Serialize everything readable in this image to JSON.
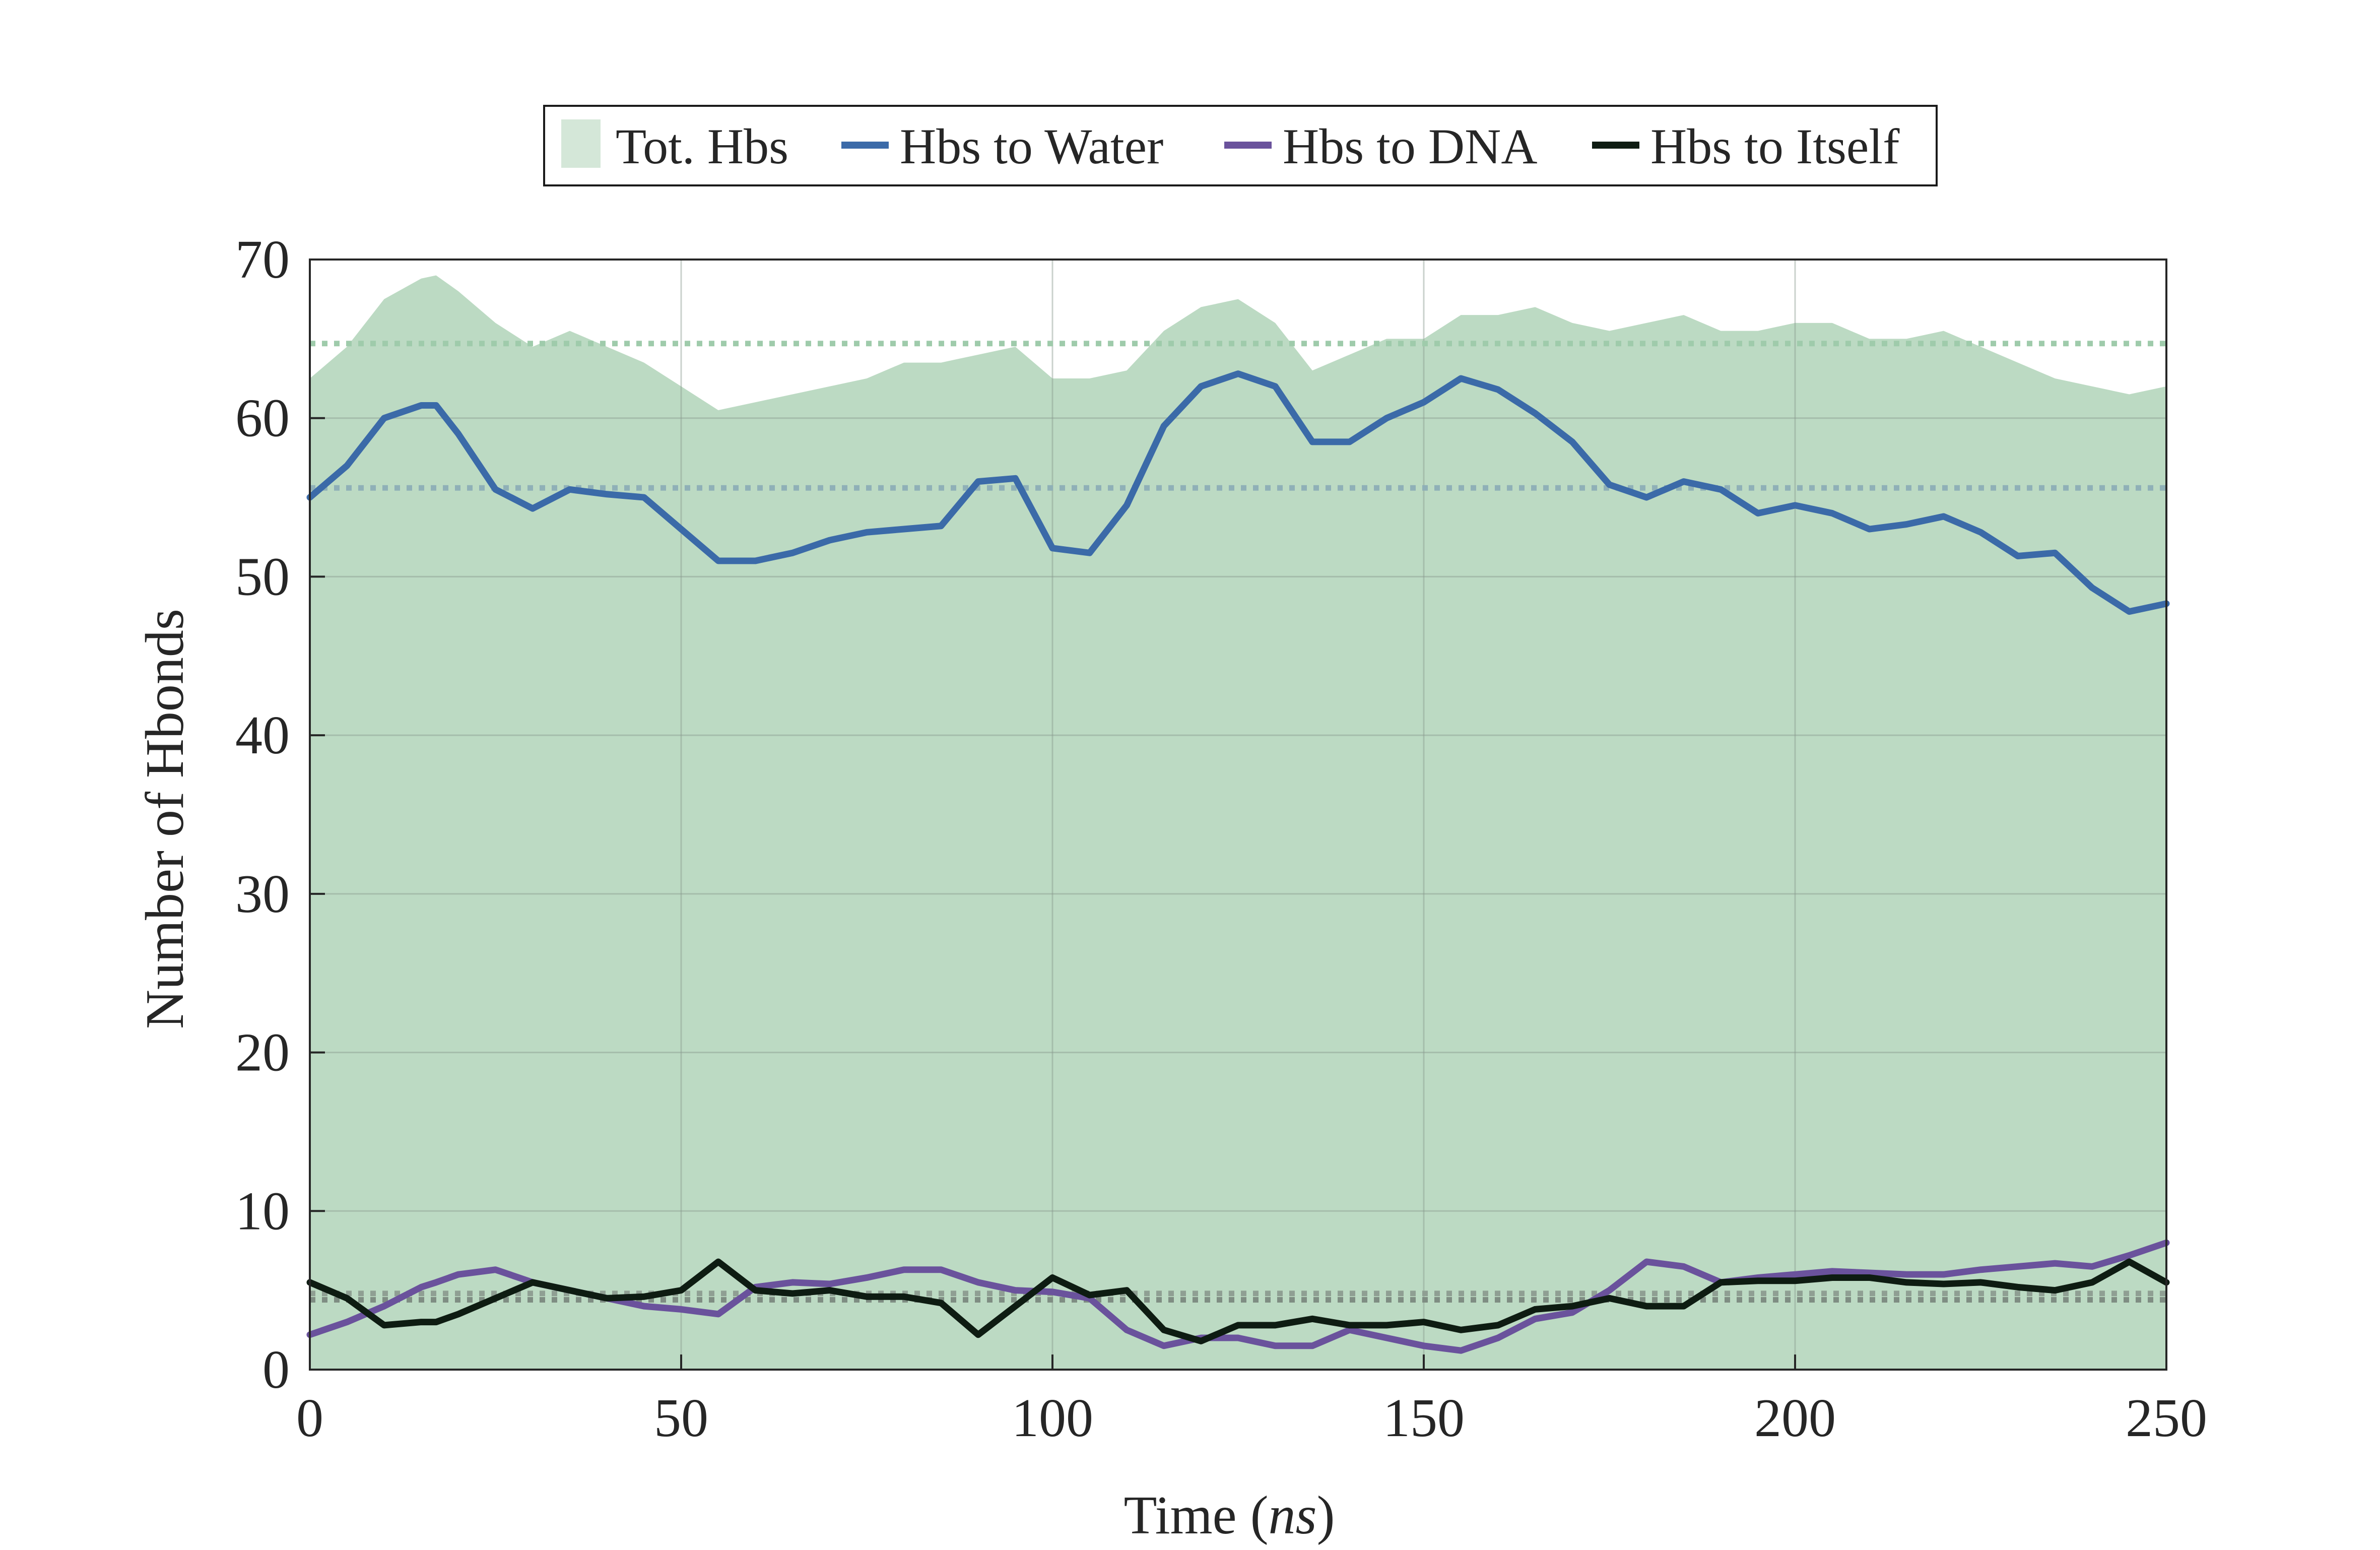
{
  "chart_data": {
    "type": "line",
    "title": "",
    "xlabel_main": "Time (",
    "xlabel_unit": "ns",
    "xlabel_close": ")",
    "ylabel": "Number of Hbonds",
    "xlim": [
      0,
      250
    ],
    "ylim": [
      0,
      70
    ],
    "xticks": [
      0,
      50,
      100,
      150,
      200,
      250
    ],
    "yticks": [
      0,
      10,
      20,
      30,
      40,
      50,
      60,
      70
    ],
    "grid": true,
    "legend_position": "top-center",
    "x": [
      0,
      5,
      10,
      15,
      17,
      20,
      25,
      30,
      35,
      40,
      45,
      50,
      55,
      60,
      65,
      70,
      75,
      80,
      85,
      90,
      95,
      100,
      105,
      110,
      115,
      120,
      125,
      130,
      135,
      140,
      145,
      150,
      155,
      160,
      165,
      170,
      175,
      180,
      185,
      190,
      195,
      200,
      205,
      210,
      215,
      220,
      225,
      230,
      235,
      240,
      245,
      250
    ],
    "series": [
      {
        "name": "Tot. Hbs",
        "kind": "area",
        "color": "#bcdac3",
        "values": [
          62.5,
          64.5,
          67.5,
          68.8,
          69.0,
          68.0,
          66.0,
          64.5,
          65.5,
          64.5,
          63.5,
          62.0,
          60.5,
          61.0,
          61.5,
          62.0,
          62.5,
          63.5,
          63.5,
          64.0,
          64.5,
          62.5,
          62.5,
          63.0,
          65.5,
          67.0,
          67.5,
          66.0,
          63.0,
          64.0,
          65.0,
          65.0,
          66.5,
          66.5,
          67.0,
          66.0,
          65.5,
          66.0,
          66.5,
          65.5,
          65.5,
          66.0,
          66.0,
          65.0,
          65.0,
          65.5,
          64.5,
          63.5,
          62.5,
          62.0,
          61.5,
          62.0
        ]
      },
      {
        "name": "Hbs to Water",
        "kind": "line",
        "color": "#3b6aa8",
        "values": [
          55.0,
          57.0,
          60.0,
          60.8,
          60.8,
          59.0,
          55.5,
          54.3,
          55.5,
          55.2,
          55.0,
          53.0,
          51.0,
          51.0,
          51.5,
          52.3,
          52.8,
          53.0,
          53.2,
          56.0,
          56.2,
          51.8,
          51.5,
          54.5,
          59.5,
          62.0,
          62.8,
          62.0,
          58.5,
          58.5,
          60.0,
          61.0,
          62.5,
          61.8,
          60.3,
          58.5,
          55.8,
          55.0,
          56.0,
          55.5,
          54.0,
          54.5,
          54.0,
          53.0,
          53.3,
          53.8,
          52.8,
          51.3,
          51.5,
          49.3,
          47.8,
          48.3
        ]
      },
      {
        "name": "Hbs to DNA",
        "kind": "line",
        "color": "#6a529c",
        "values": [
          2.2,
          3.0,
          4.0,
          5.2,
          5.5,
          6.0,
          6.3,
          5.5,
          5.0,
          4.5,
          4.0,
          3.8,
          3.5,
          5.2,
          5.5,
          5.4,
          5.8,
          6.3,
          6.3,
          5.5,
          5.0,
          4.9,
          4.5,
          2.5,
          1.5,
          2.0,
          2.0,
          1.5,
          1.5,
          2.5,
          2.0,
          1.5,
          1.2,
          2.0,
          3.2,
          3.6,
          5.0,
          6.8,
          6.5,
          5.5,
          5.8,
          6.0,
          6.2,
          6.1,
          6.0,
          6.0,
          6.3,
          6.5,
          6.7,
          6.5,
          7.2,
          8.0
        ]
      },
      {
        "name": "Hbs to Itself",
        "kind": "line",
        "color": "#0e1c12",
        "values": [
          5.5,
          4.5,
          2.8,
          3.0,
          3.0,
          3.5,
          4.5,
          5.5,
          5.0,
          4.5,
          4.6,
          5.0,
          6.8,
          5.0,
          4.8,
          5.0,
          4.6,
          4.6,
          4.2,
          2.2,
          4.0,
          5.8,
          4.7,
          5.0,
          2.5,
          1.8,
          2.8,
          2.8,
          3.2,
          2.8,
          2.8,
          3.0,
          2.5,
          2.8,
          3.8,
          4.0,
          4.5,
          4.0,
          4.0,
          5.5,
          5.6,
          5.6,
          5.8,
          5.8,
          5.5,
          5.4,
          5.5,
          5.2,
          5.0,
          5.5,
          6.8,
          5.5
        ]
      }
    ],
    "mean_lines": [
      {
        "of": "Tot. Hbs",
        "value": 64.7,
        "color": "#9fcbab"
      },
      {
        "of": "Hbs to Water",
        "value": 55.6,
        "color": "#8fb0b7"
      },
      {
        "of": "Hbs to DNA",
        "value": 4.8,
        "color": "#8f9f93"
      },
      {
        "of": "Hbs to Itself",
        "value": 4.4,
        "color": "#7f8d83"
      }
    ],
    "legend": [
      "Tot. Hbs",
      "Hbs to Water",
      "Hbs to DNA",
      "Hbs to Itself"
    ]
  }
}
